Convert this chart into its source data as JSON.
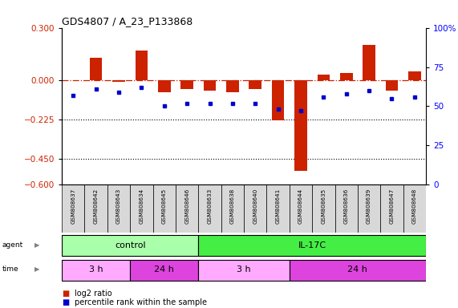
{
  "title": "GDS4807 / A_23_P133868",
  "samples": [
    "GSM808637",
    "GSM808642",
    "GSM808643",
    "GSM808634",
    "GSM808645",
    "GSM808646",
    "GSM808633",
    "GSM808638",
    "GSM808640",
    "GSM808641",
    "GSM808644",
    "GSM808635",
    "GSM808636",
    "GSM808639",
    "GSM808647",
    "GSM808648"
  ],
  "log2_ratio": [
    0.0,
    0.13,
    -0.01,
    0.17,
    -0.07,
    -0.05,
    -0.06,
    -0.07,
    -0.05,
    -0.23,
    -0.52,
    0.03,
    0.04,
    0.2,
    -0.06,
    0.05
  ],
  "percentile": [
    57,
    61,
    59,
    62,
    50,
    52,
    52,
    52,
    52,
    48,
    47,
    56,
    58,
    60,
    55,
    56
  ],
  "ylim_left": [
    -0.6,
    0.3
  ],
  "ylim_right": [
    0,
    100
  ],
  "yticks_left": [
    0.3,
    0.0,
    -0.225,
    -0.45,
    -0.6
  ],
  "yticks_right": [
    100,
    75,
    50,
    25,
    0
  ],
  "hlines": [
    -0.225,
    -0.45
  ],
  "agent_groups": [
    {
      "label": "control",
      "start": 0,
      "end": 5,
      "color": "#aaffaa"
    },
    {
      "label": "IL-17C",
      "start": 6,
      "end": 15,
      "color": "#44ee44"
    }
  ],
  "time_groups": [
    {
      "label": "3 h",
      "start": 0,
      "end": 2,
      "color": "#ffaaff"
    },
    {
      "label": "24 h",
      "start": 3,
      "end": 5,
      "color": "#dd44dd"
    },
    {
      "label": "3 h",
      "start": 6,
      "end": 9,
      "color": "#ffaaff"
    },
    {
      "label": "24 h",
      "start": 10,
      "end": 15,
      "color": "#dd44dd"
    }
  ],
  "bar_color": "#cc2200",
  "dot_color": "#0000cc",
  "zero_line_color": "#cc2200",
  "bg_color": "#ffffff",
  "legend_bar": "log2 ratio",
  "legend_dot": "percentile rank within the sample"
}
